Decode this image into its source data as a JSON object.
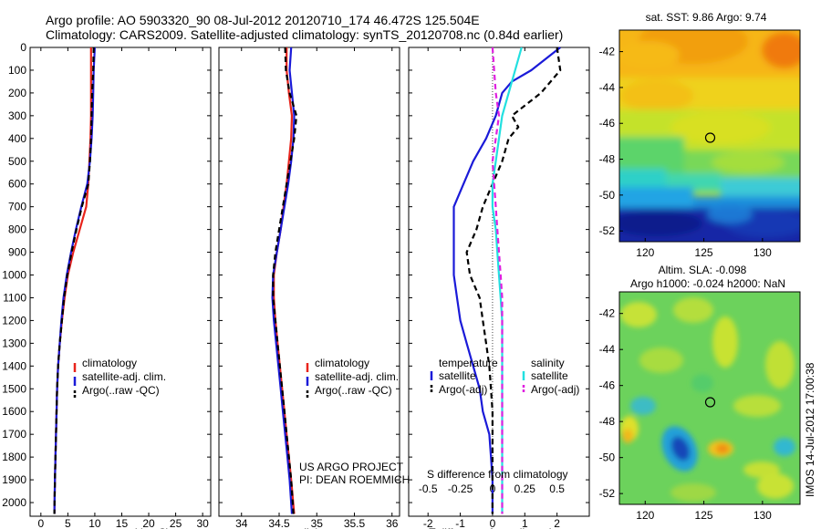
{
  "header": {
    "line1": "Argo profile: AO 5903320_90 08-Jul-2012 20120710_174 46.472S 125.504E",
    "line2": "Climatology: CARS2009. Satellite-adjusted climatology: synTS_20120708.nc (0.84d earlier)"
  },
  "colors": {
    "climatology": "#e8241c",
    "satellite": "#1a1ad8",
    "argo": "#000000",
    "sat_salinity": "#22e0e0",
    "argo_salinity": "#e020e0"
  },
  "chart_data": [
    {
      "type": "line",
      "title": "",
      "xlabel": "temperature (deg C)",
      "ylabel": "",
      "xlim": [
        -2,
        31.5
      ],
      "ylim": [
        2060,
        0
      ],
      "xticks": [
        "0",
        "5",
        "10",
        "15",
        "20",
        "25",
        "30"
      ],
      "yticks": [
        "0",
        "100",
        "200",
        "300",
        "400",
        "500",
        "600",
        "700",
        "800",
        "900",
        "1000",
        "1100",
        "1200",
        "1300",
        "1400",
        "1500",
        "1600",
        "1700",
        "1800",
        "1900",
        "2000"
      ],
      "legend": [
        "climatology",
        "satellite-adj. clim.",
        "Argo(..raw -QC)"
      ],
      "series": [
        {
          "name": "climatology",
          "color": "#e8241c",
          "dash": false,
          "points": [
            [
              9.3,
              0
            ],
            [
              9.3,
              100
            ],
            [
              9.3,
              200
            ],
            [
              9.3,
              300
            ],
            [
              9.2,
              400
            ],
            [
              9.0,
              500
            ],
            [
              8.8,
              600
            ],
            [
              8.4,
              700
            ],
            [
              7.2,
              800
            ],
            [
              6.0,
              900
            ],
            [
              5.0,
              1000
            ],
            [
              4.4,
              1100
            ],
            [
              3.9,
              1200
            ],
            [
              3.5,
              1300
            ],
            [
              3.2,
              1400
            ],
            [
              3.0,
              1500
            ],
            [
              2.9,
              1600
            ],
            [
              2.8,
              1700
            ],
            [
              2.7,
              1800
            ],
            [
              2.6,
              1900
            ],
            [
              2.5,
              2050
            ]
          ]
        },
        {
          "name": "satellite-adj. clim.",
          "color": "#1a1ad8",
          "dash": false,
          "points": [
            [
              10.0,
              0
            ],
            [
              9.8,
              100
            ],
            [
              9.7,
              200
            ],
            [
              9.6,
              300
            ],
            [
              9.4,
              400
            ],
            [
              9.1,
              500
            ],
            [
              8.6,
              600
            ],
            [
              7.5,
              700
            ],
            [
              6.5,
              800
            ],
            [
              5.6,
              900
            ],
            [
              4.8,
              1000
            ],
            [
              4.2,
              1100
            ],
            [
              3.8,
              1200
            ],
            [
              3.5,
              1300
            ],
            [
              3.2,
              1400
            ],
            [
              3.0,
              1500
            ],
            [
              2.9,
              1600
            ],
            [
              2.8,
              1700
            ],
            [
              2.7,
              1800
            ],
            [
              2.6,
              1900
            ],
            [
              2.5,
              2050
            ]
          ]
        },
        {
          "name": "Argo(..raw -QC)",
          "color": "#000000",
          "dash": true,
          "points": [
            [
              9.8,
              0
            ],
            [
              9.7,
              100
            ],
            [
              9.5,
              200
            ],
            [
              9.4,
              300
            ],
            [
              9.3,
              400
            ],
            [
              9.1,
              500
            ],
            [
              8.8,
              600
            ],
            [
              7.6,
              700
            ],
            [
              6.6,
              800
            ],
            [
              5.7,
              900
            ],
            [
              4.9,
              1000
            ],
            [
              4.3,
              1100
            ],
            [
              3.9,
              1200
            ],
            [
              3.5,
              1300
            ],
            [
              3.2,
              1400
            ],
            [
              3.0,
              1500
            ],
            [
              2.9,
              1600
            ],
            [
              2.8,
              1700
            ],
            [
              2.7,
              1800
            ],
            [
              2.6,
              1900
            ],
            [
              2.5,
              2050
            ]
          ]
        }
      ]
    },
    {
      "type": "line",
      "title": "",
      "xlabel": "salinity",
      "ylabel": "",
      "xlim": [
        33.7,
        36.1
      ],
      "ylim": [
        2060,
        0
      ],
      "xticks": [
        "34",
        "34.5",
        "35",
        "35.5",
        "36"
      ],
      "legend": [
        "climatology",
        "satellite-adj. clim.",
        "Argo(..raw -QC)"
      ],
      "annotation": [
        "US ARGO PROJECT",
        "PI: DEAN ROEMMICH"
      ],
      "series": [
        {
          "name": "climatology",
          "color": "#e8241c",
          "dash": false,
          "points": [
            [
              34.6,
              0
            ],
            [
              34.6,
              100
            ],
            [
              34.63,
              200
            ],
            [
              34.67,
              300
            ],
            [
              34.66,
              400
            ],
            [
              34.63,
              500
            ],
            [
              34.6,
              600
            ],
            [
              34.56,
              700
            ],
            [
              34.52,
              800
            ],
            [
              34.47,
              900
            ],
            [
              34.43,
              1000
            ],
            [
              34.43,
              1100
            ],
            [
              34.45,
              1200
            ],
            [
              34.48,
              1300
            ],
            [
              34.51,
              1400
            ],
            [
              34.54,
              1500
            ],
            [
              34.57,
              1600
            ],
            [
              34.6,
              1700
            ],
            [
              34.63,
              1800
            ],
            [
              34.66,
              1900
            ],
            [
              34.7,
              2050
            ]
          ]
        },
        {
          "name": "satellite-adj. clim.",
          "color": "#1a1ad8",
          "dash": false,
          "points": [
            [
              34.66,
              0
            ],
            [
              34.64,
              100
            ],
            [
              34.67,
              200
            ],
            [
              34.7,
              300
            ],
            [
              34.69,
              400
            ],
            [
              34.66,
              500
            ],
            [
              34.62,
              600
            ],
            [
              34.57,
              700
            ],
            [
              34.52,
              800
            ],
            [
              34.47,
              900
            ],
            [
              34.42,
              1000
            ],
            [
              34.41,
              1100
            ],
            [
              34.43,
              1200
            ],
            [
              34.46,
              1300
            ],
            [
              34.49,
              1400
            ],
            [
              34.52,
              1500
            ],
            [
              34.55,
              1600
            ],
            [
              34.58,
              1700
            ],
            [
              34.61,
              1800
            ],
            [
              34.64,
              1900
            ],
            [
              34.67,
              2050
            ]
          ]
        },
        {
          "name": "Argo(..raw -QC)",
          "color": "#000000",
          "dash": true,
          "points": [
            [
              34.58,
              0
            ],
            [
              34.59,
              100
            ],
            [
              34.64,
              200
            ],
            [
              34.73,
              300
            ],
            [
              34.7,
              400
            ],
            [
              34.65,
              500
            ],
            [
              34.6,
              600
            ],
            [
              34.55,
              700
            ],
            [
              34.5,
              800
            ],
            [
              34.45,
              900
            ],
            [
              34.42,
              1000
            ],
            [
              34.42,
              1100
            ],
            [
              34.45,
              1200
            ],
            [
              34.48,
              1300
            ],
            [
              34.51,
              1400
            ],
            [
              34.54,
              1500
            ],
            [
              34.57,
              1600
            ],
            [
              34.6,
              1700
            ],
            [
              34.63,
              1800
            ],
            [
              34.66,
              1900
            ],
            [
              34.69,
              2050
            ]
          ]
        }
      ]
    },
    {
      "type": "line",
      "title": "",
      "xlabel": "T difference from climatology",
      "x2label": "S difference from climatology",
      "ylabel": "",
      "xlim": [
        -2.6,
        3.0
      ],
      "ylim": [
        2060,
        0
      ],
      "xticks": [
        "-2",
        "-1",
        "0",
        "1",
        "2"
      ],
      "x2ticks": [
        "-0.5",
        "-0.25",
        "0",
        "0.25",
        "0.5"
      ],
      "legend_temperature_title": "temperature",
      "legend_salinity_title": "salinity",
      "legend": [
        "satellite",
        "Argo(-adj)",
        "satellite",
        "Argo(-adj)"
      ],
      "series": [
        {
          "name": "temperature satellite",
          "color": "#1a1ad8",
          "dash": false,
          "points": [
            [
              2.1,
              0
            ],
            [
              1.2,
              100
            ],
            [
              0.6,
              150
            ],
            [
              0.3,
              200
            ],
            [
              0.1,
              300
            ],
            [
              -0.2,
              400
            ],
            [
              -0.6,
              500
            ],
            [
              -0.9,
              600
            ],
            [
              -1.2,
              700
            ],
            [
              -1.2,
              800
            ],
            [
              -1.2,
              900
            ],
            [
              -1.2,
              1000
            ],
            [
              -1.1,
              1100
            ],
            [
              -1.0,
              1200
            ],
            [
              -0.8,
              1300
            ],
            [
              -0.6,
              1400
            ],
            [
              -0.4,
              1500
            ],
            [
              -0.3,
              1600
            ],
            [
              -0.1,
              1700
            ],
            [
              -0.05,
              1800
            ],
            [
              0.0,
              1900
            ],
            [
              0.0,
              2050
            ]
          ]
        },
        {
          "name": "temperature Argo(-adj)",
          "color": "#000000",
          "dash": true,
          "points": [
            [
              2.0,
              0
            ],
            [
              2.1,
              100
            ],
            [
              1.5,
              200
            ],
            [
              0.6,
              300
            ],
            [
              0.8,
              350
            ],
            [
              0.5,
              400
            ],
            [
              0.3,
              500
            ],
            [
              0.0,
              600
            ],
            [
              -0.3,
              700
            ],
            [
              -0.5,
              800
            ],
            [
              -0.8,
              900
            ],
            [
              -0.7,
              1000
            ],
            [
              -0.4,
              1100
            ],
            [
              -0.3,
              1200
            ],
            [
              -0.2,
              1300
            ],
            [
              -0.1,
              1400
            ],
            [
              -0.05,
              1500
            ],
            [
              0.0,
              1600
            ],
            [
              0.0,
              1700
            ],
            [
              0.0,
              1800
            ],
            [
              0.0,
              1900
            ],
            [
              0.0,
              2050
            ]
          ]
        },
        {
          "name": "salinity satellite",
          "color": "#22e0e0",
          "dash": false,
          "points": [
            [
              0.9,
              0
            ],
            [
              0.7,
              100
            ],
            [
              0.5,
              200
            ],
            [
              0.3,
              300
            ],
            [
              0.2,
              400
            ],
            [
              0.1,
              500
            ],
            [
              0.0,
              600
            ],
            [
              0.0,
              700
            ],
            [
              0.1,
              800
            ],
            [
              0.15,
              900
            ],
            [
              0.2,
              1000
            ],
            [
              0.25,
              1100
            ],
            [
              0.3,
              1200
            ],
            [
              0.3,
              1300
            ],
            [
              0.3,
              1400
            ],
            [
              0.3,
              1500
            ],
            [
              0.3,
              1600
            ],
            [
              0.3,
              1700
            ],
            [
              0.3,
              1800
            ],
            [
              0.3,
              1900
            ],
            [
              0.3,
              2050
            ]
          ]
        },
        {
          "name": "salinity Argo(-adj)",
          "color": "#e020e0",
          "dash": true,
          "points": [
            [
              0.0,
              0
            ],
            [
              0.05,
              100
            ],
            [
              0.1,
              200
            ],
            [
              0.2,
              300
            ],
            [
              0.1,
              400
            ],
            [
              0.0,
              500
            ],
            [
              0.05,
              600
            ],
            [
              0.1,
              700
            ],
            [
              0.15,
              800
            ],
            [
              0.2,
              900
            ],
            [
              0.25,
              1000
            ],
            [
              0.3,
              1100
            ],
            [
              0.3,
              1200
            ],
            [
              0.3,
              1300
            ],
            [
              0.3,
              1400
            ],
            [
              0.3,
              1500
            ],
            [
              0.3,
              1600
            ],
            [
              0.3,
              1700
            ],
            [
              0.3,
              1800
            ],
            [
              0.3,
              1900
            ],
            [
              0.3,
              2050
            ]
          ]
        }
      ]
    },
    {
      "type": "heatmap",
      "title": "sat. SST: 9.86 Argo: 9.74",
      "xlim": [
        117.8,
        133.2
      ],
      "ylim": [
        -52.6,
        -40.8
      ],
      "xticks": [
        "120",
        "125",
        "130"
      ],
      "yticks": [
        "-42",
        "-44",
        "-46",
        "-48",
        "-50",
        "-52"
      ],
      "marker": [
        125.5,
        -46.47
      ]
    },
    {
      "type": "heatmap",
      "title": "Altim. SLA: -0.098",
      "subtitle": "Argo h1000: -0.024 h2000: NaN",
      "xlim": [
        117.8,
        133.2
      ],
      "ylim": [
        -52.6,
        -40.8
      ],
      "xticks": [
        "120",
        "125",
        "130"
      ],
      "yticks": [
        "-42",
        "-44",
        "-46",
        "-48",
        "-50",
        "-52"
      ],
      "marker": [
        125.5,
        -46.47
      ]
    }
  ],
  "footer": {
    "side_label": "IMOS 14-Jul-2012 17:00:38"
  }
}
